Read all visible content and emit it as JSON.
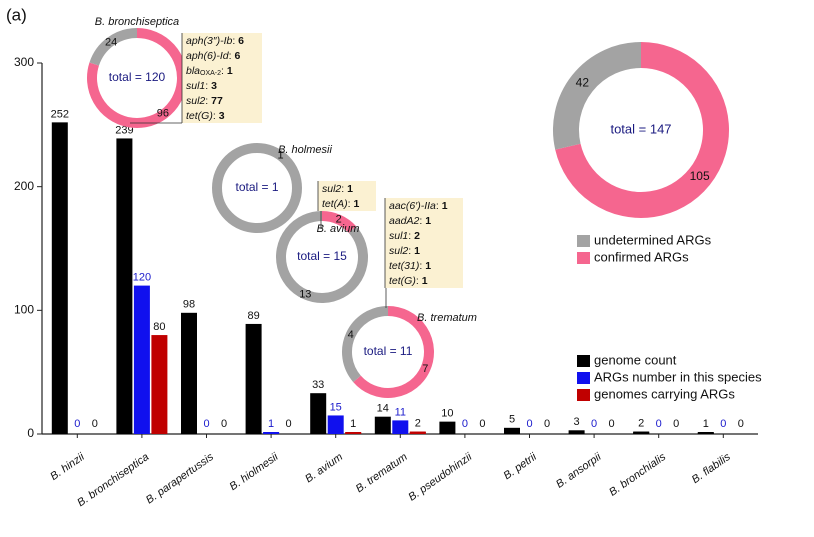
{
  "panel_label": "(a)",
  "chart_data": [
    {
      "type": "bar",
      "categories": [
        "B. hinzii",
        "B. bronchiseptica",
        "B. parapertussis",
        "B. hiolmesii",
        "B. avium",
        "B. trematum",
        "B. pseudohinzii",
        "B. petrii",
        "B. ansorpii",
        "B. bronchialis",
        "B. flabilis"
      ],
      "series": [
        {
          "name": "genome count",
          "color": "#000000",
          "values": [
            252,
            239,
            98,
            89,
            33,
            14,
            10,
            5,
            3,
            2,
            1
          ]
        },
        {
          "name": "ARGs number in this species",
          "color": "#1010ee",
          "values": [
            0,
            120,
            0,
            1,
            15,
            11,
            0,
            0,
            0,
            0,
            0
          ]
        },
        {
          "name": "genomes carrying ARGs",
          "color": "#c00000",
          "values": [
            0,
            80,
            0,
            0,
            1,
            2,
            0,
            0,
            0,
            0,
            0
          ]
        }
      ],
      "ylim": [
        0,
        300
      ],
      "yticks": [
        0,
        100,
        200,
        300
      ]
    },
    {
      "type": "donut",
      "center_label": "total = 147",
      "categories": [
        "undetermined ARGs",
        "confirmed ARGs"
      ],
      "colors": [
        "#a3a3a3",
        "#f5668f"
      ],
      "values": [
        42,
        105
      ]
    },
    {
      "type": "donut",
      "title": "B. bronchiseptica",
      "center_label": "total = 120",
      "colors": [
        "#a3a3a3",
        "#f5668f"
      ],
      "values": [
        24,
        96
      ],
      "genes": [
        {
          "name": "aph(3″)-Ib",
          "count": 6
        },
        {
          "name": "aph(6)-Id",
          "count": 6
        },
        {
          "name": "bla",
          "subscript": "OXA-2",
          "count": 1
        },
        {
          "name": "sul1",
          "count": 3
        },
        {
          "name": "sul2",
          "count": 77
        },
        {
          "name": "tet(G)",
          "count": 3
        }
      ]
    },
    {
      "type": "donut",
      "title": "B. holmesii",
      "center_label": "total = 1",
      "colors": [
        "#a3a3a3"
      ],
      "values": [
        1
      ]
    },
    {
      "type": "donut",
      "title": "B. avium",
      "center_label": "total = 15",
      "colors": [
        "#a3a3a3",
        "#f5668f"
      ],
      "values": [
        13,
        2
      ],
      "genes": [
        {
          "name": "sul2",
          "count": 1
        },
        {
          "name": "tet(A)",
          "count": 1
        }
      ]
    },
    {
      "type": "donut",
      "title": "B. trematum",
      "center_label": "total = 11",
      "colors": [
        "#a3a3a3",
        "#f5668f"
      ],
      "values": [
        4,
        7
      ],
      "genes": [
        {
          "name": "aac(6′)-IIa",
          "count": 1
        },
        {
          "name": "aadA2",
          "count": 1
        },
        {
          "name": "sul1",
          "count": 2
        },
        {
          "name": "sul2",
          "count": 1
        },
        {
          "name": "tet(31)",
          "count": 1
        },
        {
          "name": "tet(G)",
          "count": 1
        }
      ]
    }
  ]
}
